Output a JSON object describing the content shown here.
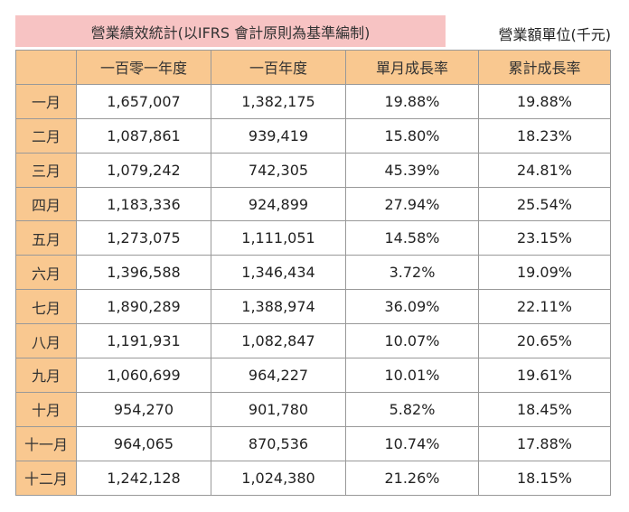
{
  "title": "營業績效統計(以IFRS 會計原則為基準編制)",
  "unit": "營業額單位(千元)",
  "headers": [
    "",
    "一百零一年度",
    "一百年度",
    "單月成長率",
    "累計成長率"
  ],
  "rows": [
    [
      "一月",
      "1,657,007",
      "1,382,175",
      "19.88%",
      "19.88%"
    ],
    [
      "二月",
      "1,087,861",
      "939,419",
      "15.80%",
      "18.23%"
    ],
    [
      "三月",
      "1,079,242",
      "742,305",
      "45.39%",
      "24.81%"
    ],
    [
      "四月",
      "1,183,336",
      "924,899",
      "27.94%",
      "25.54%"
    ],
    [
      "五月",
      "1,273,075",
      "1,111,051",
      "14.58%",
      "23.15%"
    ],
    [
      "六月",
      "1,396,588",
      "1,346,434",
      "3.72%",
      "19.09%"
    ],
    [
      "七月",
      "1,890,289",
      "1,388,974",
      "36.09%",
      "22.11%"
    ],
    [
      "八月",
      "1,191,931",
      "1,082,847",
      "10.07%",
      "20.65%"
    ],
    [
      "九月",
      "1,060,699",
      "964,227",
      "10.01%",
      "19.61%"
    ],
    [
      "十月",
      "954,270",
      "901,780",
      "5.82%",
      "18.45%"
    ],
    [
      "十一月",
      "964,065",
      "870,536",
      "10.74%",
      "17.88%"
    ],
    [
      "十二月",
      "1,242,128",
      "1,024,380",
      "21.26%",
      "18.15%"
    ]
  ]
}
